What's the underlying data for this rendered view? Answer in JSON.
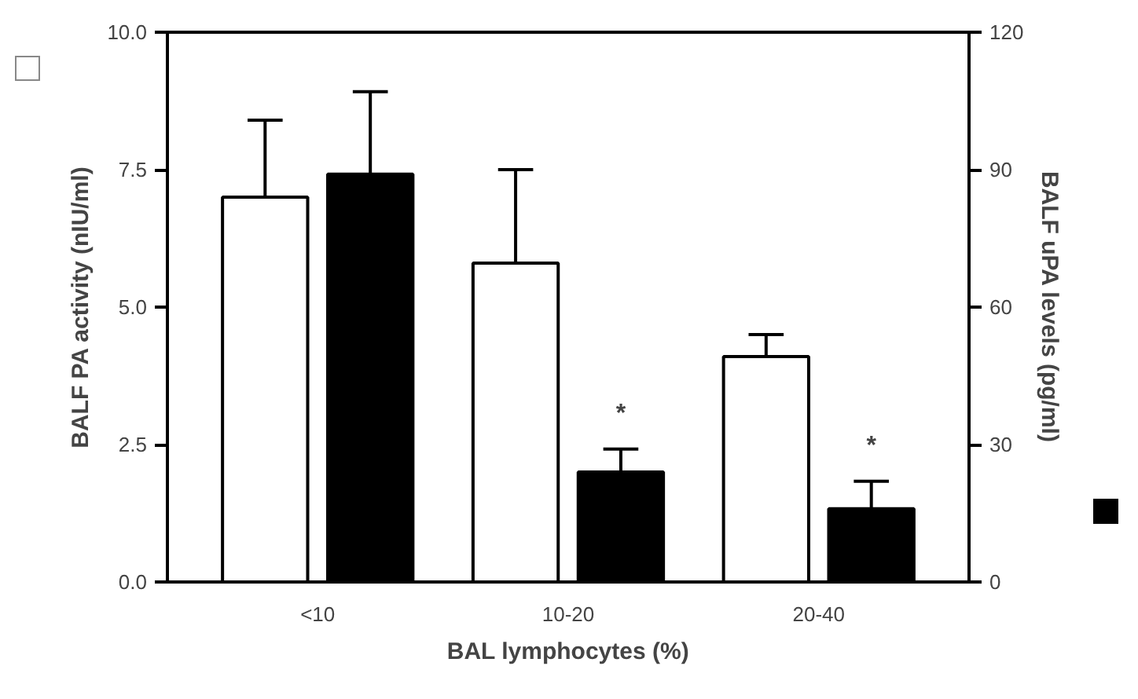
{
  "chart_data": {
    "type": "bar",
    "xlabel": "BAL lymphocytes (%)",
    "ylabel": "BALF PA activity (nIU/ml)",
    "y2label": "BALF uPA levels (pg/ml)",
    "categories": [
      "<10",
      "10-20",
      "20-40"
    ],
    "series": [
      {
        "color": "#ffffff",
        "values": [
          7.0,
          5.8,
          4.1
        ],
        "errors": [
          [
            7.0,
            8.4
          ],
          [
            5.8,
            7.5
          ],
          [
            4.1,
            4.5
          ]
        ]
      },
      {
        "color": "#000000",
        "values": [
          89,
          24,
          16
        ],
        "errors": [
          [
            89,
            107
          ],
          [
            24,
            29
          ],
          [
            16,
            22
          ]
        ],
        "axis": "y2"
      }
    ],
    "ylim": [
      0,
      10
    ],
    "yticks": [
      {
        "value": 0,
        "label": "0.0"
      },
      {
        "value": 2.5,
        "label": "2.5"
      },
      {
        "value": 5,
        "label": "5.0"
      },
      {
        "value": 7.5,
        "label": "7.5"
      },
      {
        "value": 10,
        "label": "10.0"
      }
    ],
    "y2lim": [
      0,
      120
    ],
    "y2ticks": [
      0,
      30,
      60,
      90,
      120
    ],
    "annotations": [
      "*",
      "*"
    ],
    "grid": false
  }
}
